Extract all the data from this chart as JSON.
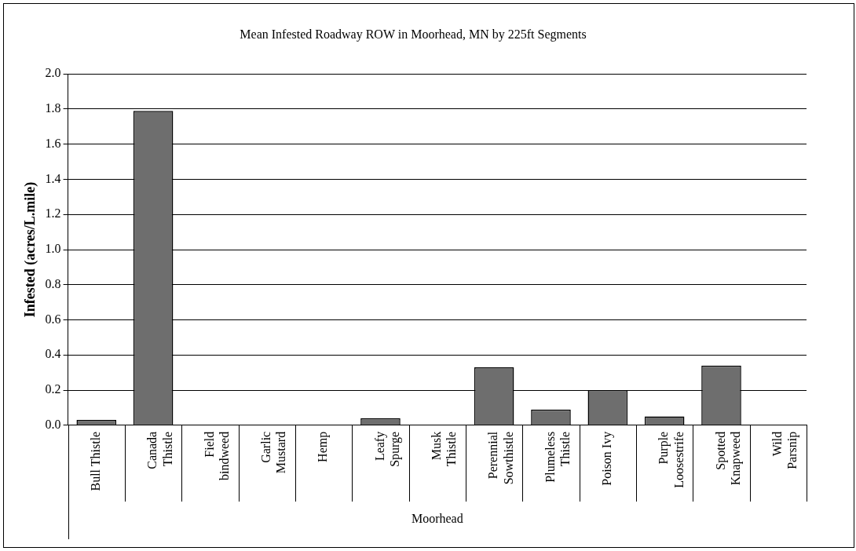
{
  "chart_data": {
    "type": "bar",
    "title": "Mean Infested Roadway ROW in Moorhead, MN by 225ft Segments",
    "ylabel": "Infested (acres/L.mile)",
    "xlabel": "Moorhead",
    "categories": [
      "Bull Thistle",
      "Canada Thistle",
      "Field bindweed",
      "Garlic Mustard",
      "Hemp",
      "Leafy Spurge",
      "Musk Thistle",
      "Perennial Sowthistle",
      "Plumeless Thistle",
      "Poison Ivy",
      "Purple Loosestrife",
      "Spotted Knapweed",
      "Wild Parsnip"
    ],
    "values": [
      0.03,
      1.79,
      0,
      0,
      0,
      0.04,
      0,
      0.33,
      0.09,
      0.2,
      0.05,
      0.34,
      0
    ],
    "color": "#6e6e6e",
    "ylim": [
      0,
      2
    ],
    "yticks": [
      {
        "value": 0,
        "label": "0.0"
      },
      {
        "value": 0.2,
        "label": "0.2"
      },
      {
        "value": 0.4,
        "label": "0.4"
      },
      {
        "value": 0.6,
        "label": "0.6"
      },
      {
        "value": 0.8,
        "label": "0.8"
      },
      {
        "value": 1,
        "label": "1.0"
      },
      {
        "value": 1.2,
        "label": "1.2"
      },
      {
        "value": 1.4,
        "label": "1.4"
      },
      {
        "value": 1.6,
        "label": "1.6"
      },
      {
        "value": 1.8,
        "label": "1.8"
      },
      {
        "value": 2,
        "label": "2.0"
      }
    ],
    "grid": "y",
    "legend": false
  }
}
